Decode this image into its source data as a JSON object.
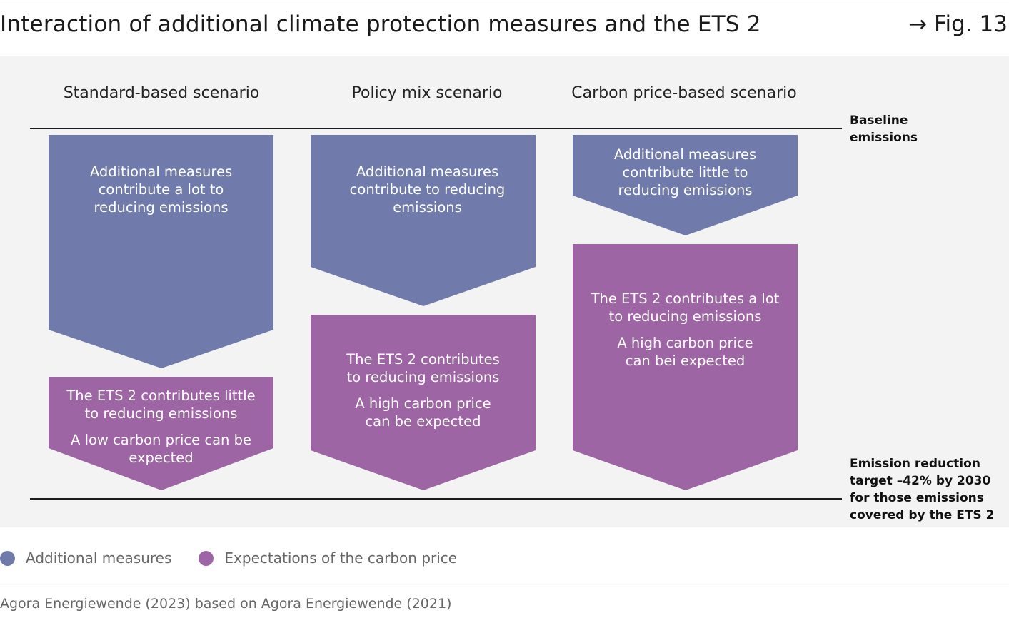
{
  "header": {
    "title": "Interaction of additional climate protection measures and the ETS 2",
    "fig_ref": "→ Fig. 13"
  },
  "diagram": {
    "columns": [
      {
        "title": "Standard-based scenario",
        "measures_text": [
          "Additional measures",
          "contribute a lot to",
          "reducing emissions"
        ],
        "ets_text_1": [
          "The ETS 2 contributes little",
          "to reducing emissions"
        ],
        "ets_text_2": [
          "A low carbon price can be",
          "expected"
        ]
      },
      {
        "title": "Policy mix scenario",
        "measures_text": [
          "Additional measures",
          "contribute to reducing",
          "emissions"
        ],
        "ets_text_1": [
          "The ETS 2 contributes",
          "to reducing emissions"
        ],
        "ets_text_2": [
          "A high carbon price",
          "can be expected"
        ]
      },
      {
        "title": "Carbon price-based scenario",
        "measures_text": [
          "Additional measures",
          "contribute little to",
          "reducing emissions"
        ],
        "ets_text_1": [
          "The ETS 2 contributes a lot",
          "to reducing emissions"
        ],
        "ets_text_2": [
          "A high carbon price",
          "can bei expected"
        ]
      }
    ],
    "baseline_label": [
      "Baseline",
      "emissions"
    ],
    "target_label": [
      "Emission reduction",
      "target –42% by 2030",
      "for those emissions",
      "covered by the ETS 2"
    ]
  },
  "legend": {
    "items": [
      {
        "label": "Additional measures",
        "color": "#717bab"
      },
      {
        "label": "Expectations of the carbon price",
        "color": "#9d65a3"
      }
    ]
  },
  "footer": {
    "source": "Agora Energiewende (2023) based on Agora Energiewende (2021)"
  },
  "colors": {
    "measures": "#717bab",
    "carbon_price": "#9d65a3",
    "panel_bg": "#f3f3f3"
  }
}
